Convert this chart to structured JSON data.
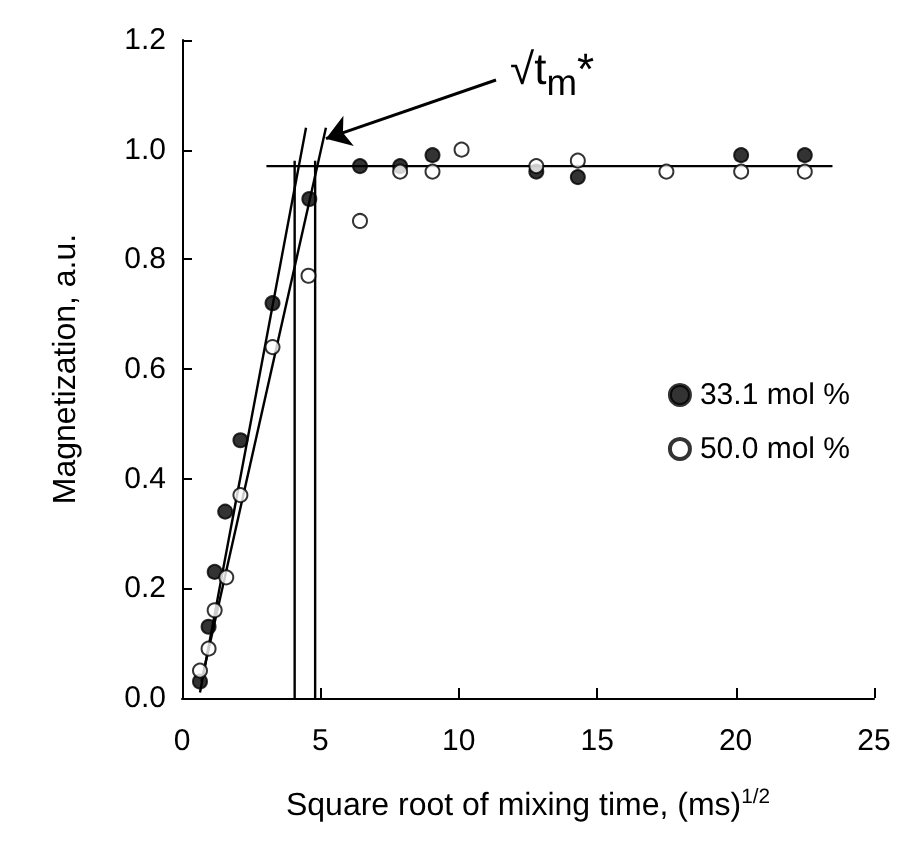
{
  "chart_data": {
    "type": "scatter",
    "xlabel": "Square root of mixing time, (ms)$^{1/2}$",
    "ylabel": "Magnetization, a.u.",
    "series": [
      {
        "name": "33.1 mol %",
        "color": "#000000",
        "marker": "circle",
        "x": [
          0.65,
          0.96,
          1.18,
          1.56,
          2.11,
          3.27,
          4.6,
          6.43,
          7.88,
          9.05,
          12.8,
          14.3,
          20.2,
          22.5
        ],
        "values": [
          0.03,
          0.13,
          0.23,
          0.34,
          0.47,
          0.72,
          0.91,
          0.97,
          0.97,
          0.99,
          0.96,
          0.95,
          0.99,
          0.99
        ]
      },
      {
        "name": "50.0 mol %",
        "color": "#ffffff",
        "marker": "circle",
        "x": [
          0.65,
          0.96,
          1.18,
          1.6,
          2.11,
          3.27,
          4.57,
          6.43,
          7.88,
          9.05,
          10.1,
          12.8,
          14.3,
          17.5,
          20.2,
          22.5
        ],
        "values": [
          0.05,
          0.09,
          0.16,
          0.22,
          0.37,
          0.64,
          0.77,
          0.87,
          0.96,
          0.96,
          1.0,
          0.97,
          0.98,
          0.96,
          0.96,
          0.96
        ]
      },
      {
        "type": "line",
        "color": "#000000",
        "x": [
          0.65,
          4.48
        ],
        "values": [
          0.01,
          1.04
        ]
      },
      {
        "type": "line",
        "color": "#000000",
        "x": [
          0.7,
          5.2
        ],
        "values": [
          0.03,
          1.04
        ]
      },
      {
        "type": "line",
        "color": "#000000",
        "x": [
          3.05,
          23.5
        ],
        "values": [
          0.97,
          0.97
        ]
      },
      {
        "type": "line",
        "color": "#000000",
        "x": [
          4.07,
          4.07
        ],
        "values": [
          0,
          0.98
        ]
      },
      {
        "type": "line",
        "color": "#000000",
        "x": [
          4.81,
          4.81
        ],
        "values": [
          0,
          0.98
        ]
      }
    ],
    "annotations": [
      {
        "text": "√t$_{m}$*",
        "x": 5.2,
        "y": 1.02
      }
    ],
    "xlim": [
      0,
      25
    ],
    "xticks": [
      0,
      5,
      10,
      15,
      20,
      25
    ],
    "ylim": [
      0,
      1.2
    ],
    "yticks": [
      {
        "value": 0,
        "label": "0.0"
      },
      {
        "value": 0.2,
        "label": "0.2"
      },
      {
        "value": 0.4,
        "label": "0.4"
      },
      {
        "value": 0.6,
        "label": "0.6"
      },
      {
        "value": 0.8,
        "label": "0.8"
      },
      {
        "value": 1.0,
        "label": "1.0"
      },
      {
        "value": 1.2,
        "label": "1.2"
      }
    ],
    "legend": "right",
    "grid": false
  }
}
